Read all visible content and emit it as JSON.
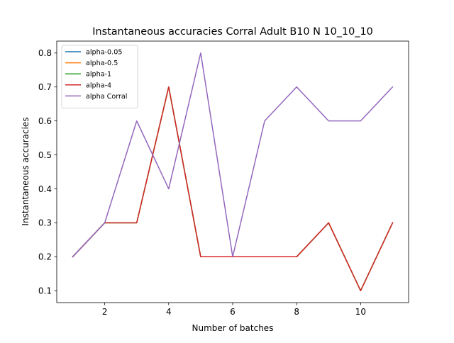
{
  "chart_data": {
    "type": "line",
    "title": "Instantaneous accuracies Corral Adult B10 N 10_10_10",
    "xlabel": "Number of batches",
    "ylabel": "Instantaneous accuracies",
    "xlim": [
      0.5,
      11.5
    ],
    "ylim": [
      0.065,
      0.835
    ],
    "xticks": [
      2,
      4,
      6,
      8,
      10
    ],
    "xtick_labels": [
      "2",
      "4",
      "6",
      "8",
      "10"
    ],
    "yticks": [
      0.1,
      0.2,
      0.3,
      0.4,
      0.5,
      0.6,
      0.7,
      0.8
    ],
    "ytick_labels": [
      "0.1",
      "0.2",
      "0.3",
      "0.4",
      "0.5",
      "0.6",
      "0.7",
      "0.8"
    ],
    "grid": false,
    "legend_position": "top-left",
    "x": [
      1,
      2,
      3,
      4,
      5,
      6,
      7,
      8,
      9,
      10,
      11
    ],
    "series": [
      {
        "name": "alpha-0.05",
        "color": "#1f77b4",
        "values": [
          0.2,
          0.3,
          0.3,
          0.7,
          0.2,
          0.2,
          0.2,
          0.2,
          0.3,
          0.1,
          0.3
        ]
      },
      {
        "name": "alpha-0.5",
        "color": "#ff7f0e",
        "values": [
          0.2,
          0.3,
          0.3,
          0.7,
          0.2,
          0.2,
          0.2,
          0.2,
          0.3,
          0.1,
          0.3
        ]
      },
      {
        "name": "alpha-1",
        "color": "#2ca02c",
        "values": [
          0.2,
          0.3,
          0.3,
          0.7,
          0.2,
          0.2,
          0.2,
          0.2,
          0.3,
          0.1,
          0.3
        ]
      },
      {
        "name": "alpha-4",
        "color": "#d62728",
        "values": [
          0.2,
          0.3,
          0.3,
          0.7,
          0.2,
          0.2,
          0.2,
          0.2,
          0.3,
          0.1,
          0.3
        ]
      },
      {
        "name": "alpha Corral",
        "color": "#9467bd",
        "values": [
          0.2,
          0.3,
          0.6,
          0.4,
          0.8,
          0.2,
          0.6,
          0.7,
          0.6,
          0.6,
          0.7
        ]
      }
    ]
  }
}
